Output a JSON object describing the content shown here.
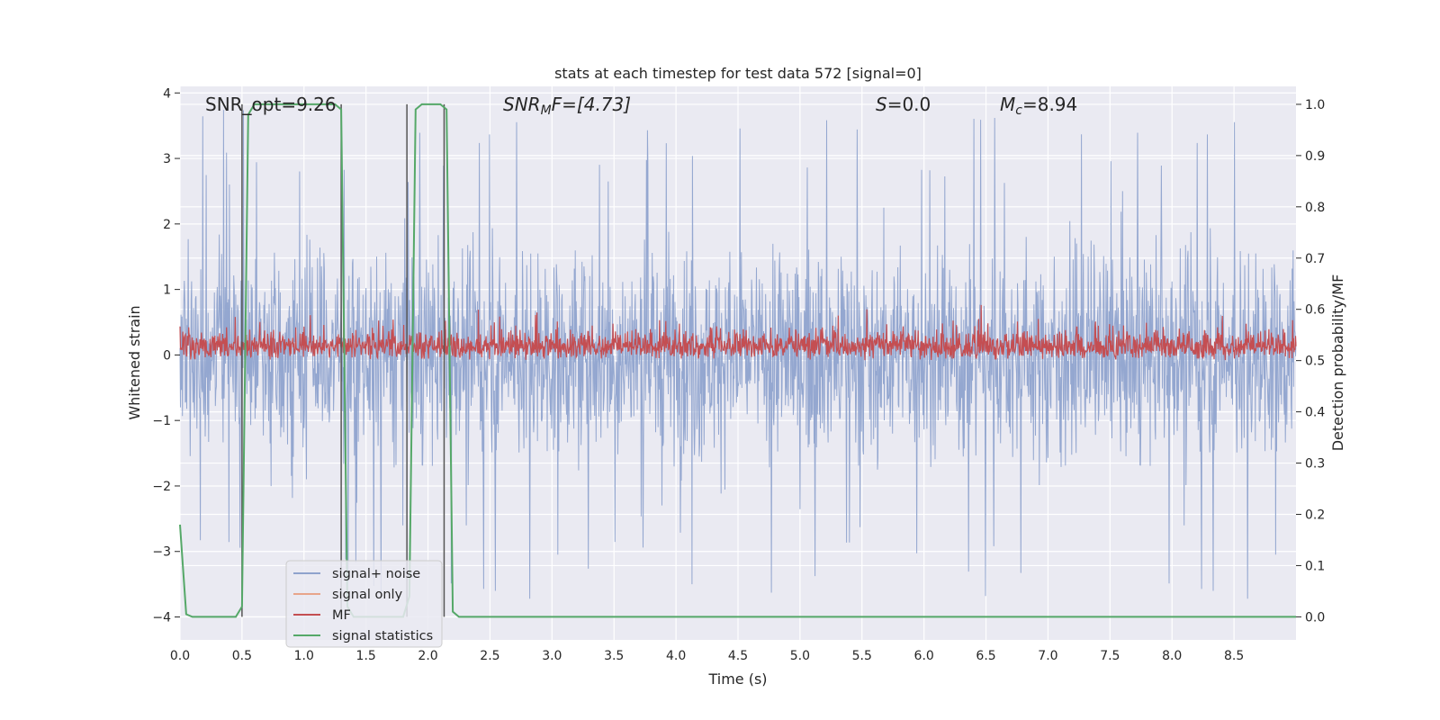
{
  "chart_data": {
    "type": "line",
    "title": "stats at each timestep for test data 572 [signal=0]",
    "xlabel": "Time (s)",
    "ylabel": "Whitened strain",
    "y2label": "Detection probability/MF",
    "xlim": [
      0.0,
      9.0
    ],
    "ylim": [
      -4.35,
      4.1
    ],
    "y2lim": [
      -0.045,
      1.035
    ],
    "xticks": [
      "0.0",
      "0.5",
      "1.0",
      "1.5",
      "2.0",
      "2.5",
      "3.0",
      "3.5",
      "4.0",
      "4.5",
      "5.0",
      "5.5",
      "6.0",
      "6.5",
      "7.0",
      "7.5",
      "8.0",
      "8.5"
    ],
    "yticks": [
      "4",
      "3",
      "2",
      "1",
      "0",
      "−1",
      "−2",
      "−3",
      "−4"
    ],
    "y2ticks": [
      "1.0",
      "0.9",
      "0.8",
      "0.7",
      "0.6",
      "0.5",
      "0.4",
      "0.3",
      "0.2",
      "0.1",
      "0.0"
    ],
    "grid": true,
    "legend_position": "lower-left",
    "annotations": {
      "snr_opt": "SNR_opt=9.26",
      "snr_mf_main": "SNR",
      "snr_mf_sub": "M",
      "snr_mf_rest": "F=[4.73]",
      "s_main": "S",
      "s_rest": "=0.0",
      "mc_main": "M",
      "mc_sub": "c",
      "mc_rest": "=8.94"
    },
    "series": [
      {
        "name": "signal+ noise",
        "color": "#8fa3cd",
        "axis": "left",
        "description_values": {
          "mean": 0.0,
          "envelope_hi": 2.5,
          "envelope_lo": -2.5,
          "sample_rate_hz": 256
        }
      },
      {
        "name": "signal only",
        "color": "#e8a58a",
        "axis": "left",
        "values": []
      },
      {
        "name": "MF",
        "color": "#c44e52",
        "axis": "right",
        "description_values": {
          "mean": 0.54,
          "range": [
            0.5,
            0.61
          ]
        }
      },
      {
        "name": "signal statistics",
        "color": "#55a868",
        "axis": "right",
        "x": [
          0.0,
          0.05,
          0.1,
          0.45,
          0.5,
          0.55,
          0.6,
          0.65,
          1.25,
          1.3,
          1.35,
          1.4,
          1.8,
          1.85,
          1.9,
          1.95,
          2.0,
          2.05,
          2.1,
          2.15,
          2.2,
          2.25,
          9.0
        ],
        "values": [
          0.18,
          0.005,
          0.0,
          0.0,
          0.02,
          0.98,
          1.0,
          1.0,
          1.0,
          0.99,
          0.02,
          0.0,
          0.0,
          0.04,
          0.99,
          1.0,
          1.0,
          1.0,
          1.0,
          0.99,
          0.01,
          0.0,
          0.0
        ]
      }
    ],
    "vertical_markers": [
      0.5,
      1.3,
      1.83,
      2.13
    ]
  }
}
